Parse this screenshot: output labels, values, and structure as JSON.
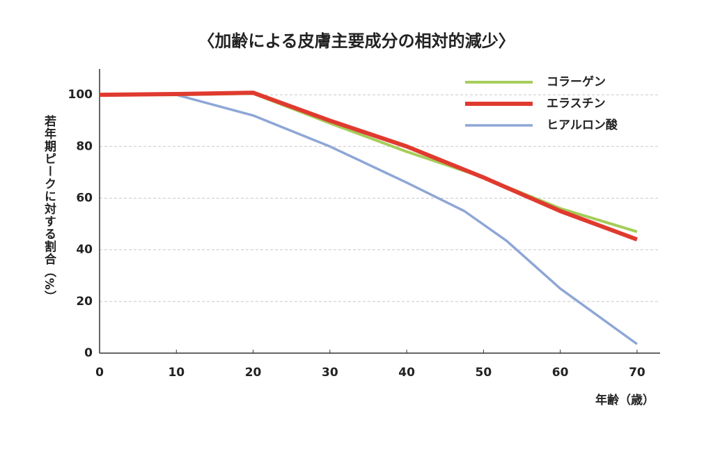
{
  "chart_data": {
    "type": "line",
    "title": "〈加齢による皮膚主要成分の相対的減少〉",
    "xlabel": "年齢（歳）",
    "ylabel": "若年期ピークに対する割合（%）",
    "xlim": [
      0,
      73
    ],
    "ylim": [
      0,
      110
    ],
    "xticks": [
      0,
      10,
      20,
      30,
      40,
      50,
      60,
      70
    ],
    "yticks": [
      0,
      20,
      40,
      60,
      80,
      100
    ],
    "grid": true,
    "legend": "upper right",
    "series": [
      {
        "name": "コラーゲン",
        "color": "#a5cd5a",
        "x": [
          0,
          10,
          20,
          30,
          40,
          50,
          60,
          70
        ],
        "values": [
          100,
          100,
          100.5,
          89,
          78,
          68,
          56,
          47
        ]
      },
      {
        "name": "エラスチン",
        "color": "#e03a2f",
        "x": [
          0,
          10,
          20,
          30,
          40,
          50,
          60,
          70
        ],
        "values": [
          100,
          100.3,
          100.8,
          90,
          80,
          68,
          55,
          44
        ]
      },
      {
        "name": "ヒアルロン酸",
        "color": "#8ea6d6",
        "x": [
          0,
          10,
          20,
          25,
          30,
          40,
          47.5,
          53,
          60,
          70
        ],
        "values": [
          100,
          100,
          92,
          86,
          80,
          66,
          55,
          43.5,
          25,
          3.5
        ]
      }
    ]
  }
}
